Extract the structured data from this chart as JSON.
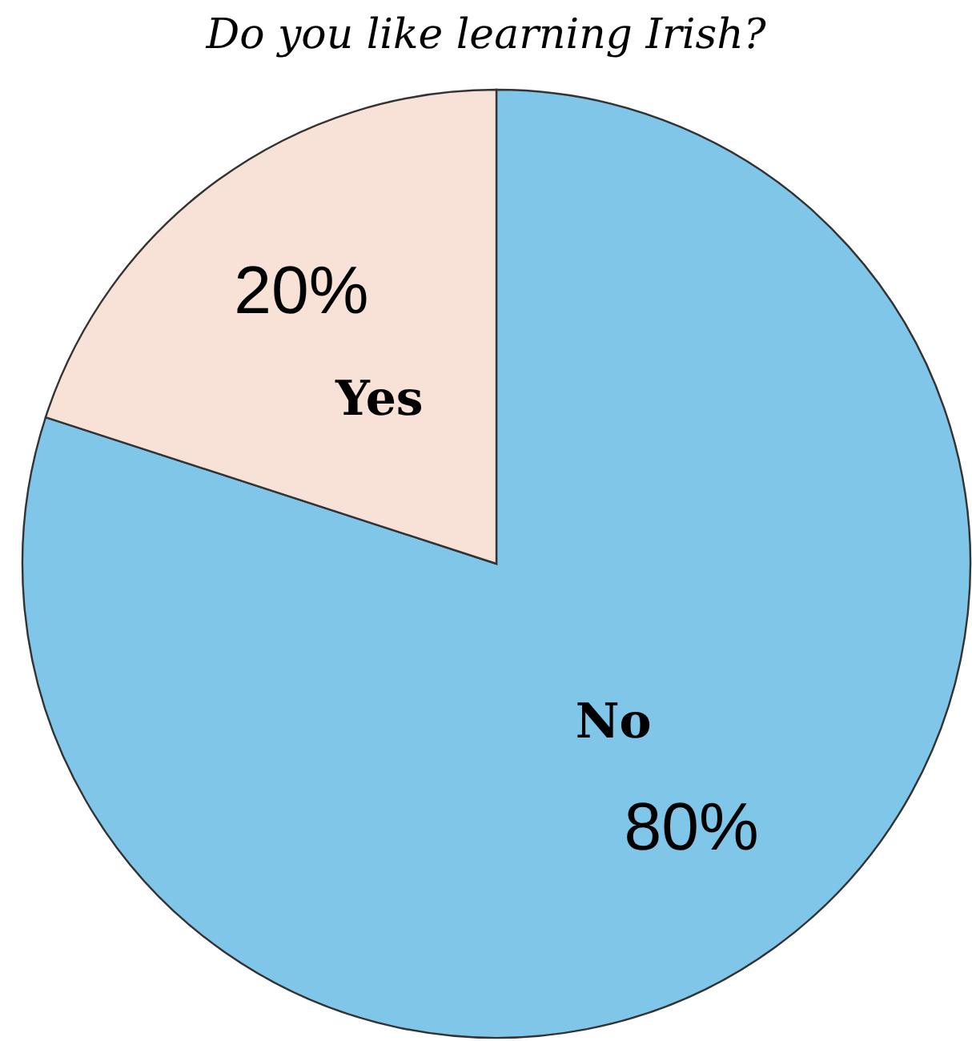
{
  "chart_data": {
    "type": "pie",
    "title": "Do you like learning Irish?",
    "categories": [
      "No",
      "Yes"
    ],
    "values": [
      80,
      20
    ],
    "colors": [
      "#7fc6e8",
      "#f8e1d6"
    ],
    "value_labels": [
      "80%",
      "20%"
    ]
  }
}
